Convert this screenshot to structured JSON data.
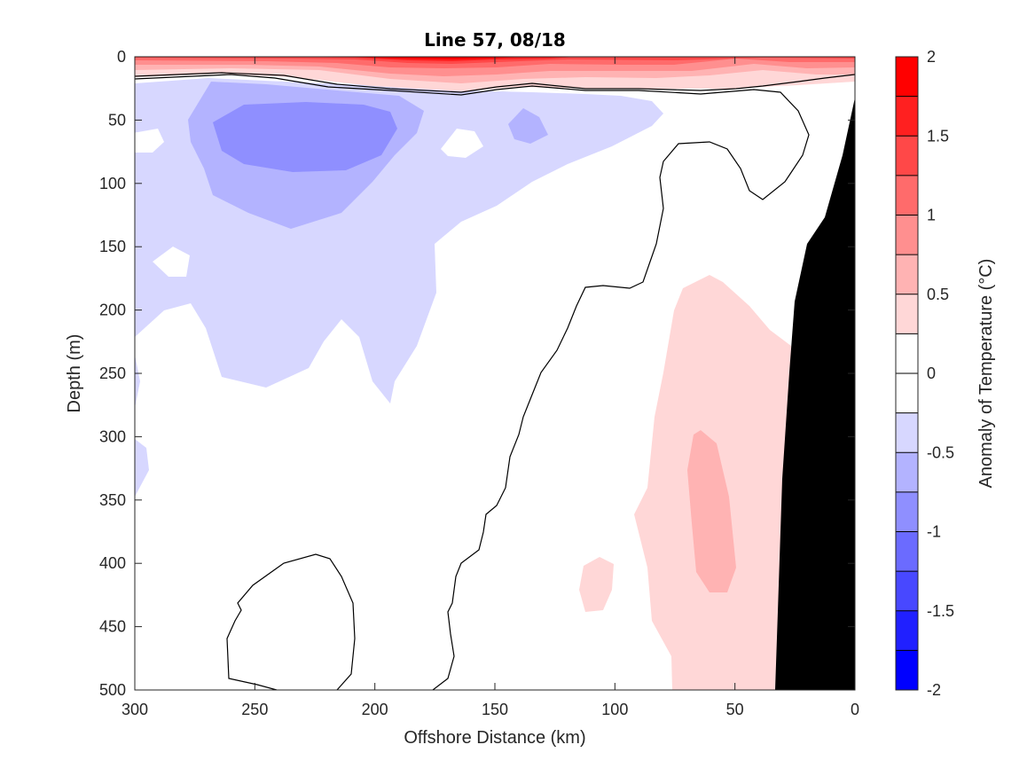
{
  "chart_data": {
    "type": "heatmap",
    "subtype": "filled-contour-section",
    "title": "Line 57, 08/18",
    "xlabel": "Offshore Distance (km)",
    "ylabel": "Depth (m)",
    "xlim": [
      300,
      0
    ],
    "x_reversed": true,
    "ylim": [
      0,
      500
    ],
    "y_reversed": true,
    "xticks": [
      300,
      250,
      200,
      150,
      100,
      50,
      0
    ],
    "yticks": [
      0,
      50,
      100,
      150,
      200,
      250,
      300,
      350,
      400,
      450,
      500
    ],
    "grid": false,
    "colorbar": {
      "label": "Anomaly of Temperature (°C)",
      "range": [
        -2,
        2
      ],
      "ticks": [
        2,
        1.5,
        1,
        0.5,
        0,
        -0.5,
        -1,
        -1.5,
        -2
      ],
      "tick_labels": [
        "2",
        "1.5",
        "1",
        "0.5",
        "0",
        "-0.5",
        "-1",
        "-1.5",
        "-2"
      ],
      "levels": [
        -2,
        -1.75,
        -1.5,
        -1.25,
        -1,
        -0.75,
        -0.5,
        -0.25,
        0,
        0.25,
        0.5,
        0.75,
        1,
        1.25,
        1.5,
        1.75,
        2
      ],
      "colors": [
        "#0000ff",
        "#2020ff",
        "#4848ff",
        "#6b6bff",
        "#8f8fff",
        "#b3b3ff",
        "#d7d7ff",
        "#ffffff",
        "#ffffff",
        "#ffd7d7",
        "#ffb3b3",
        "#ff8f8f",
        "#ff6b6b",
        "#ff4848",
        "#ff2020",
        "#ff0000"
      ]
    },
    "zero_contour_color": "#000000",
    "land_mask_color": "#000000",
    "regions": [
      {
        "name": "surface-warm-layer",
        "anomaly_range": [
          0.25,
          2
        ],
        "depth_range": [
          0,
          25
        ],
        "note": "strongest (>1.75 °C) near 190-210 km"
      },
      {
        "name": "cold-core-offshore",
        "anomaly_range": [
          -1,
          -0.25
        ],
        "center_km": 240,
        "center_depth_m": 65
      },
      {
        "name": "cool-layer",
        "anomaly_range": [
          -0.5,
          -0.25
        ],
        "x_range_km": [
          300,
          120
        ],
        "depth_range": [
          20,
          270
        ]
      },
      {
        "name": "warm-nearshore-subsurface",
        "anomaly_range": [
          0.25,
          0.75
        ],
        "x_range_km": [
          80,
          35
        ],
        "depth_range": [
          170,
          500
        ],
        "core_anomaly": 0.5,
        "core_depth_m": [
          295,
          420
        ]
      },
      {
        "name": "small-warm-patch",
        "anomaly_range": [
          0.25,
          0.5
        ],
        "x_km": 105,
        "depth_range": [
          395,
          440
        ]
      },
      {
        "name": "land-shelf",
        "x_range_km": [
          33,
          0
        ],
        "depth_range": [
          35,
          500
        ]
      }
    ]
  }
}
